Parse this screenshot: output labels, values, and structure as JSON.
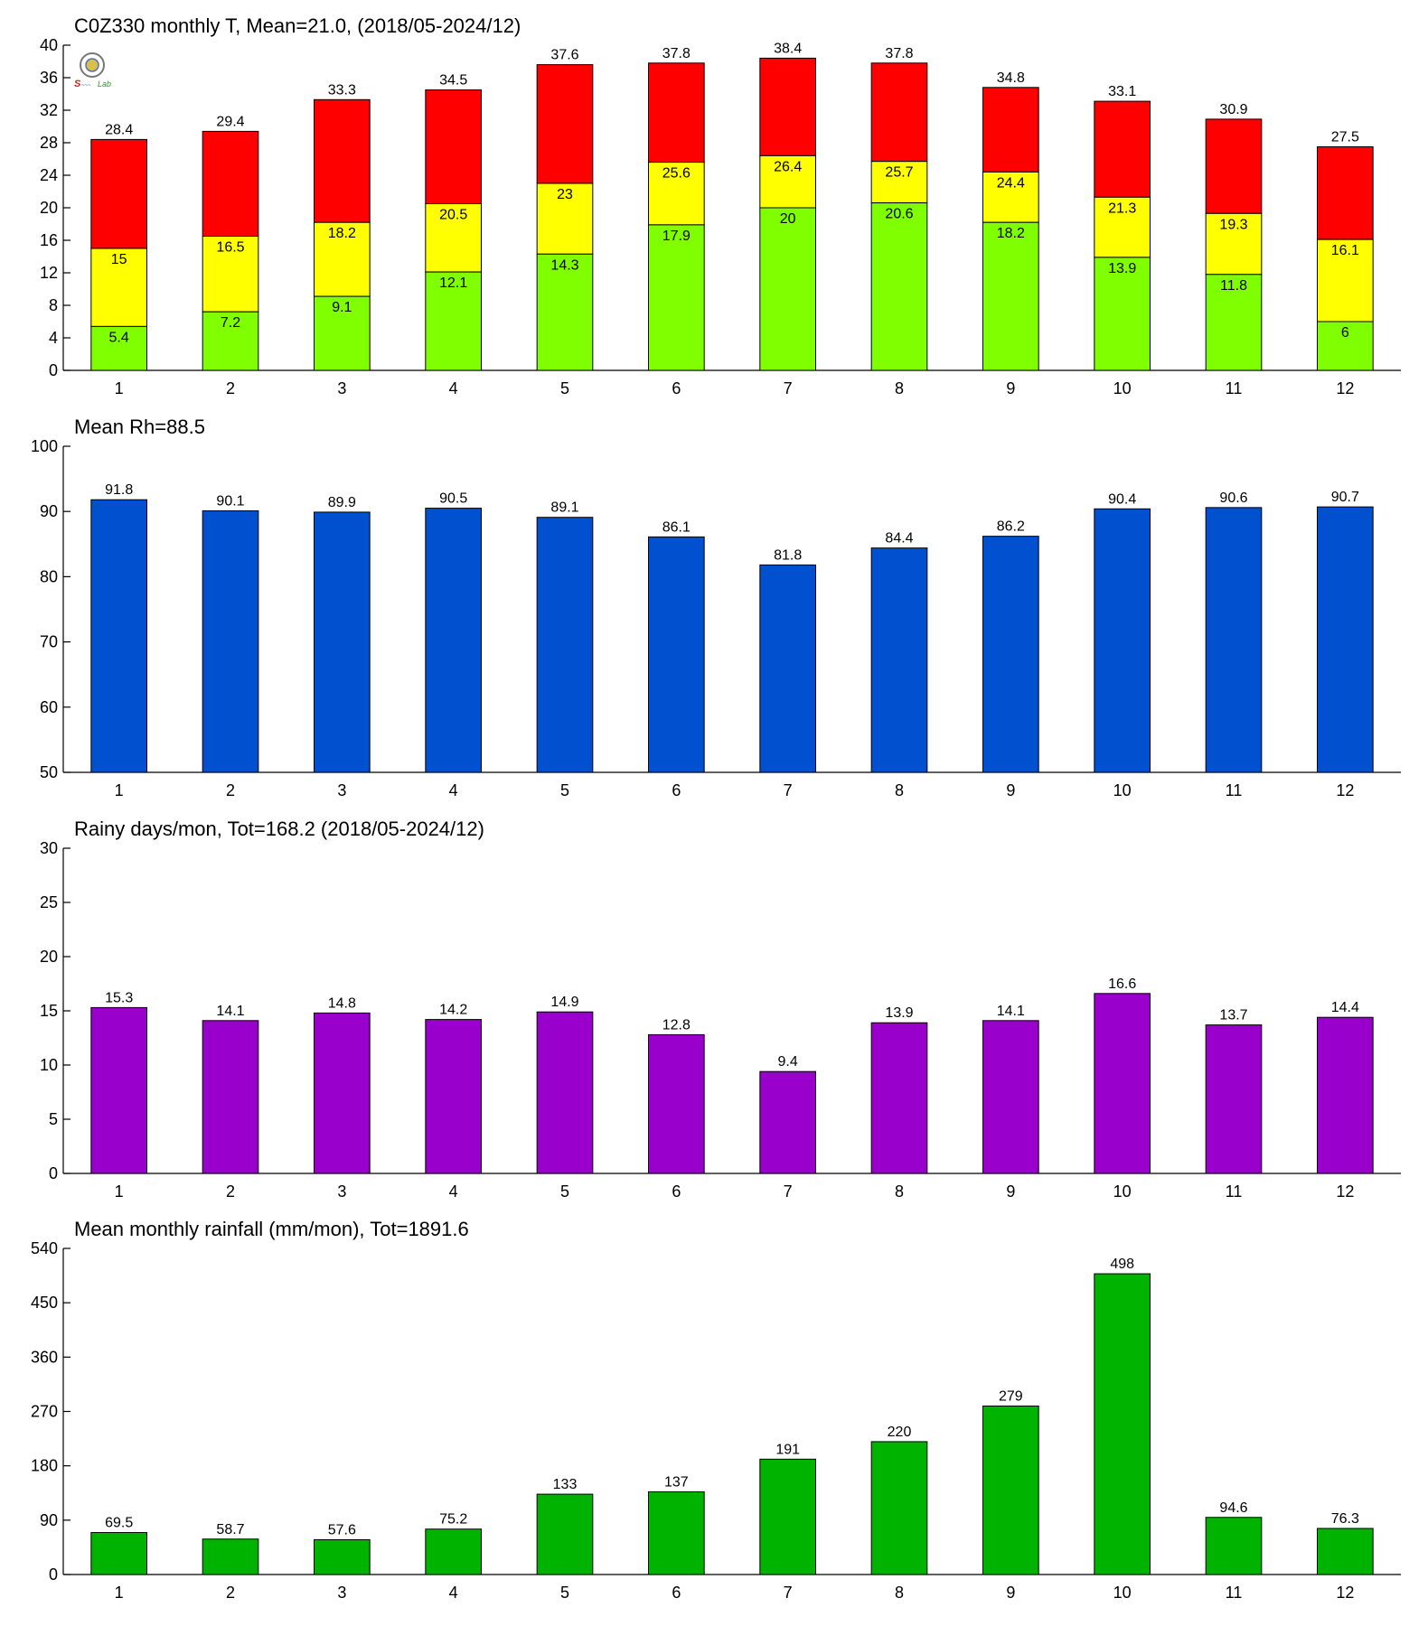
{
  "chart_data": [
    {
      "type": "bar",
      "stacked_levels": true,
      "title": "C0Z330 monthly T, Mean=21.0, (2018/05-2024/12)",
      "categories": [
        "1",
        "2",
        "3",
        "4",
        "5",
        "6",
        "7",
        "8",
        "9",
        "10",
        "11",
        "12"
      ],
      "ylim": [
        0,
        40
      ],
      "yticks": [
        0,
        4,
        8,
        12,
        16,
        20,
        24,
        28,
        32,
        36,
        40
      ],
      "series": [
        {
          "values": [
            5.4,
            7.2,
            9.1,
            12.1,
            14.3,
            17.9,
            20,
            20.6,
            18.2,
            13.9,
            11.8,
            6
          ],
          "color": "#80ff00"
        },
        {
          "values": [
            15,
            16.5,
            18.2,
            20.5,
            23,
            25.6,
            26.4,
            25.7,
            24.4,
            21.3,
            19.3,
            16.1
          ],
          "color": "#ffff00"
        },
        {
          "values": [
            28.4,
            29.4,
            33.3,
            34.5,
            37.6,
            37.8,
            38.4,
            37.8,
            34.8,
            33.1,
            30.9,
            27.5
          ],
          "color": "#ff0000"
        }
      ],
      "logo": {
        "icon": "station-logo-icon",
        "text": "Lab"
      }
    },
    {
      "type": "bar",
      "title": "Mean Rh=88.5",
      "categories": [
        "1",
        "2",
        "3",
        "4",
        "5",
        "6",
        "7",
        "8",
        "9",
        "10",
        "11",
        "12"
      ],
      "ylim": [
        50,
        100
      ],
      "yticks": [
        50,
        60,
        70,
        80,
        90,
        100
      ],
      "values": [
        91.8,
        90.1,
        89.9,
        90.5,
        89.1,
        86.1,
        81.8,
        84.4,
        86.2,
        90.4,
        90.6,
        90.7
      ],
      "color": "#0050d0"
    },
    {
      "type": "bar",
      "title": "Rainy days/mon, Tot=168.2 (2018/05-2024/12)",
      "categories": [
        "1",
        "2",
        "3",
        "4",
        "5",
        "6",
        "7",
        "8",
        "9",
        "10",
        "11",
        "12"
      ],
      "ylim": [
        0,
        30
      ],
      "yticks": [
        0,
        5,
        10,
        15,
        20,
        25,
        30
      ],
      "values": [
        15.3,
        14.1,
        14.8,
        14.2,
        14.9,
        12.8,
        9.4,
        13.9,
        14.1,
        16.6,
        13.7,
        14.4
      ],
      "color": "#9900cc"
    },
    {
      "type": "bar",
      "title": "Mean monthly rainfall (mm/mon), Tot=1891.6",
      "categories": [
        "1",
        "2",
        "3",
        "4",
        "5",
        "6",
        "7",
        "8",
        "9",
        "10",
        "11",
        "12"
      ],
      "ylim": [
        0,
        540
      ],
      "yticks": [
        0,
        90,
        180,
        270,
        360,
        450,
        540
      ],
      "values": [
        69.5,
        58.7,
        57.6,
        75.2,
        133,
        137,
        191,
        220,
        279,
        498,
        94.6,
        76.3
      ],
      "color": "#00b300"
    }
  ]
}
